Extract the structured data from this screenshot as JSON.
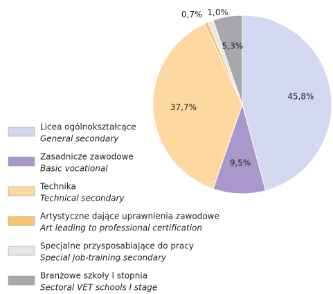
{
  "chart_data": {
    "type": "pie",
    "categories": [
      "Licea ogólnokształcące",
      "Zasadnicze zawodowe",
      "Technika",
      "Artystyczne dające uprawnienia zawodowe",
      "Specjalne przysposabiające do pracy",
      "Branżowe szkoły I stopnia"
    ],
    "categories_en": [
      "General secondary",
      "Basic vocational",
      "Technical secondary",
      "Art leading to professional certification",
      "Special job-training secondary",
      "Sectoral VET schools I stage"
    ],
    "values": [
      45.8,
      9.5,
      37.7,
      0.7,
      1.0,
      5.3
    ],
    "value_labels": [
      "45,8%",
      "9,5%",
      "37,7%",
      "0,7%",
      "1,0%",
      "5,3%"
    ],
    "colors": [
      "#d3d7ef",
      "#a898cb",
      "#fdd9a1",
      "#f6c470",
      "#e6e6e6",
      "#a6a8ab"
    ]
  }
}
